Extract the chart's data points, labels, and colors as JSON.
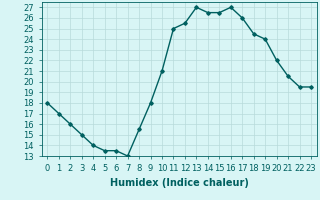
{
  "x": [
    0,
    1,
    2,
    3,
    4,
    5,
    6,
    7,
    8,
    9,
    10,
    11,
    12,
    13,
    14,
    15,
    16,
    17,
    18,
    19,
    20,
    21,
    22,
    23
  ],
  "y": [
    18,
    17,
    16,
    15,
    14,
    13.5,
    13.5,
    13,
    15.5,
    18,
    21,
    25,
    25.5,
    27,
    26.5,
    26.5,
    27,
    26,
    24.5,
    24,
    22,
    20.5,
    19.5,
    19.5
  ],
  "title": "",
  "xlabel": "Humidex (Indice chaleur)",
  "ylabel": "",
  "xlim": [
    -0.5,
    23.5
  ],
  "ylim": [
    13,
    27.5
  ],
  "yticks": [
    13,
    14,
    15,
    16,
    17,
    18,
    19,
    20,
    21,
    22,
    23,
    24,
    25,
    26,
    27
  ],
  "xticks": [
    0,
    1,
    2,
    3,
    4,
    5,
    6,
    7,
    8,
    9,
    10,
    11,
    12,
    13,
    14,
    15,
    16,
    17,
    18,
    19,
    20,
    21,
    22,
    23
  ],
  "line_color": "#006060",
  "marker": "D",
  "marker_size": 1.8,
  "bg_color": "#d8f5f5",
  "grid_color": "#b8dada",
  "xlabel_fontsize": 7,
  "tick_fontsize": 6,
  "line_width": 1.0
}
